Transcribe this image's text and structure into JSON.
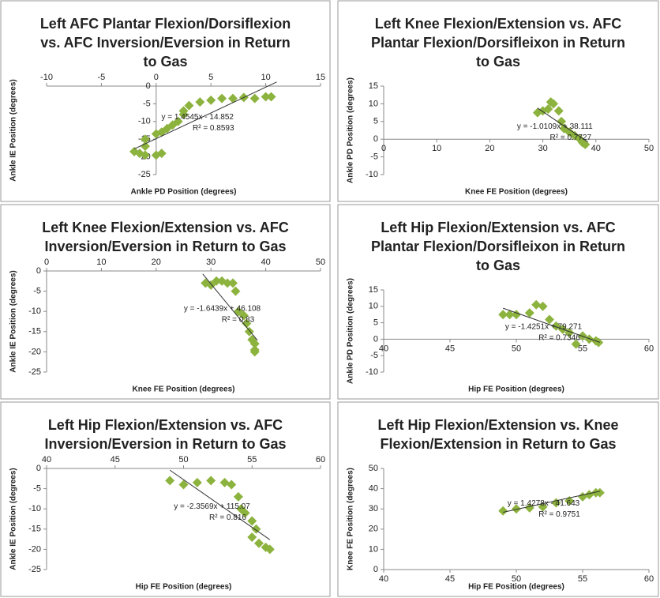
{
  "chart_data": [
    {
      "type": "scatter",
      "title": [
        "Left AFC Plantar Flexion/Dorsiflexion",
        "vs. AFC Inversion/Eversion in Return",
        "to Gas"
      ],
      "x_label": "Ankle PD Position (degrees)",
      "y_label": "Ankle IE Position (degrees)",
      "color": "#8db33f",
      "x": [
        -2,
        -1.5,
        -1,
        -1,
        -1,
        0,
        0.5,
        0,
        0.5,
        1,
        1.5,
        2,
        2.5,
        2.5,
        3,
        4,
        5,
        6,
        7,
        8,
        9,
        10,
        10.5
      ],
      "values": [
        -18.5,
        -19,
        -17,
        -15,
        -19.5,
        -19.5,
        -19,
        -13.5,
        -13,
        -12,
        -11,
        -10,
        -8,
        -7,
        -5.5,
        -4.5,
        -4,
        -3.5,
        -3.5,
        -3.2,
        -3.5,
        -3,
        -3
      ],
      "xlim": [
        -10,
        15
      ],
      "xticks": [
        -10,
        -5,
        0,
        5,
        10,
        15
      ],
      "ylim": [
        -25,
        0
      ],
      "yticks": [
        0,
        -5,
        -10,
        -15,
        -20,
        -25
      ],
      "trendline": {
        "equation": "y = 1.4545x - 14.852",
        "r_squared": "R² = 0.8593",
        "x": [
          -2,
          11
        ],
        "y": [
          -17.76,
          1.15
        ]
      }
    },
    {
      "type": "scatter",
      "title": [
        "Left Knee Flexion/Extension vs. AFC",
        "Plantar Flexion/Dorsifleixon in Return",
        "to Gas"
      ],
      "x_label": "Knee FE Position (degrees)",
      "y_label": "Ankle PD Position (degrees)",
      "color": "#8db33f",
      "x": [
        29,
        30,
        31,
        31.5,
        32,
        33,
        33.5,
        34,
        35,
        36,
        37,
        37.5,
        38
      ],
      "values": [
        7.5,
        8,
        8.5,
        10.5,
        10,
        8,
        5,
        3,
        2,
        1,
        0,
        -1,
        -1.5
      ],
      "xlim": [
        0,
        50
      ],
      "xticks": [
        0,
        10,
        20,
        30,
        40,
        50
      ],
      "ylim": [
        -10,
        15
      ],
      "yticks": [
        -10,
        -5,
        0,
        5,
        10,
        15
      ],
      "trendline": {
        "equation": "y = -1.0109x + 38.111",
        "r_squared": "R² = 0.7727",
        "x": [
          29,
          38.5
        ],
        "y": [
          8.8,
          -0.81
        ]
      }
    },
    {
      "type": "scatter",
      "title": [
        "Left Knee Flexion/Extension vs. AFC",
        "Inversion/Eversion in Return to Gas"
      ],
      "x_label": "Knee FE Position (degrees)",
      "y_label": "Ankle IE Position (degrees)",
      "color": "#8db33f",
      "x": [
        29,
        30,
        31,
        32,
        33,
        34,
        34.5,
        35,
        36,
        36.5,
        37,
        37.5,
        38,
        38,
        38
      ],
      "values": [
        -3,
        -3.5,
        -2.5,
        -2.5,
        -3,
        -3,
        -5,
        -10,
        -11,
        -13,
        -15,
        -17,
        -18,
        -19.5,
        -20
      ],
      "xlim": [
        0,
        50
      ],
      "xticks": [
        0,
        10,
        20,
        30,
        40,
        50
      ],
      "ylim": [
        -25,
        0
      ],
      "yticks": [
        0,
        -5,
        -10,
        -15,
        -20,
        -25
      ],
      "trendline": {
        "equation": "y = -1.6439x + 46.108",
        "r_squared": "R² = 0.83",
        "x": [
          28.5,
          38.5
        ],
        "y": [
          -0.74,
          -17.18
        ]
      }
    },
    {
      "type": "scatter",
      "title": [
        "Left Hip Flexion/Extension vs. AFC",
        "Plantar Flexion/Dorsifleixon in Return",
        "to Gas"
      ],
      "x_label": "Hip FE Position (degrees)",
      "y_label": "Ankle PD Position (degrees)",
      "color": "#8db33f",
      "x": [
        49,
        49.5,
        50,
        51,
        51.5,
        52,
        52.5,
        53,
        53.5,
        54,
        55,
        55.5,
        56,
        56.2,
        54.5
      ],
      "values": [
        7.5,
        7.5,
        7.5,
        8,
        10.5,
        10,
        6,
        4,
        3,
        2,
        1,
        0,
        -0.5,
        -1,
        -1.5
      ],
      "xlim": [
        40,
        60
      ],
      "xticks": [
        40,
        45,
        50,
        55,
        60
      ],
      "ylim": [
        -10,
        15
      ],
      "yticks": [
        -10,
        -5,
        0,
        5,
        10,
        15
      ],
      "trendline": {
        "equation": "y = -1.4251x + 79.271",
        "r_squared": "R² = 0.7346",
        "x": [
          49,
          56.3
        ],
        "y": [
          9.44,
          -0.96
        ]
      }
    },
    {
      "type": "scatter",
      "title": [
        "Left Hip Flexion/Extension vs. AFC",
        "Inversion/Eversion in Return to Gas"
      ],
      "x_label": "Hip FE Position (degrees)",
      "y_label": "Ankle IE Position (degrees)",
      "color": "#8db33f",
      "x": [
        49,
        50,
        51,
        52,
        53,
        53.5,
        54,
        54.2,
        54.5,
        55,
        55.3,
        55,
        55.5,
        56,
        56.3
      ],
      "values": [
        -3,
        -4,
        -3.5,
        -3,
        -3.5,
        -4,
        -7,
        -10,
        -11,
        -13,
        -15,
        -17,
        -18.5,
        -19.5,
        -20
      ],
      "xlim": [
        40,
        60
      ],
      "xticks": [
        40,
        45,
        50,
        55,
        60
      ],
      "ylim": [
        -25,
        0
      ],
      "yticks": [
        0,
        -5,
        -10,
        -15,
        -20,
        -25
      ],
      "trendline": {
        "equation": "y = -2.3569x + 115.07",
        "r_squared": "R² = 0.816",
        "x": [
          49,
          56.3
        ],
        "y": [
          -0.42,
          -17.62
        ]
      }
    },
    {
      "type": "scatter",
      "title": [
        "Left Hip Flexion/Extension vs. Knee",
        "Flexion/Extension in Return to Gas"
      ],
      "x_label": "Hip FE Position (degrees)",
      "y_label": "Knee FE Position (degrees)",
      "color": "#8db33f",
      "x": [
        49,
        50,
        51,
        52,
        53,
        54,
        55,
        55.5,
        56,
        56.3
      ],
      "values": [
        29,
        30,
        30.5,
        31,
        33,
        34,
        36,
        37,
        38,
        38
      ],
      "xlim": [
        40,
        60
      ],
      "xticks": [
        40,
        45,
        50,
        55,
        60
      ],
      "ylim": [
        0,
        50
      ],
      "yticks": [
        0,
        10,
        20,
        30,
        40,
        50
      ],
      "trendline": {
        "equation": "y = 1.4278x - 41.643",
        "r_squared": "R² = 0.9751",
        "x": [
          49,
          56.3
        ],
        "y": [
          28.32,
          38.74
        ]
      }
    }
  ]
}
